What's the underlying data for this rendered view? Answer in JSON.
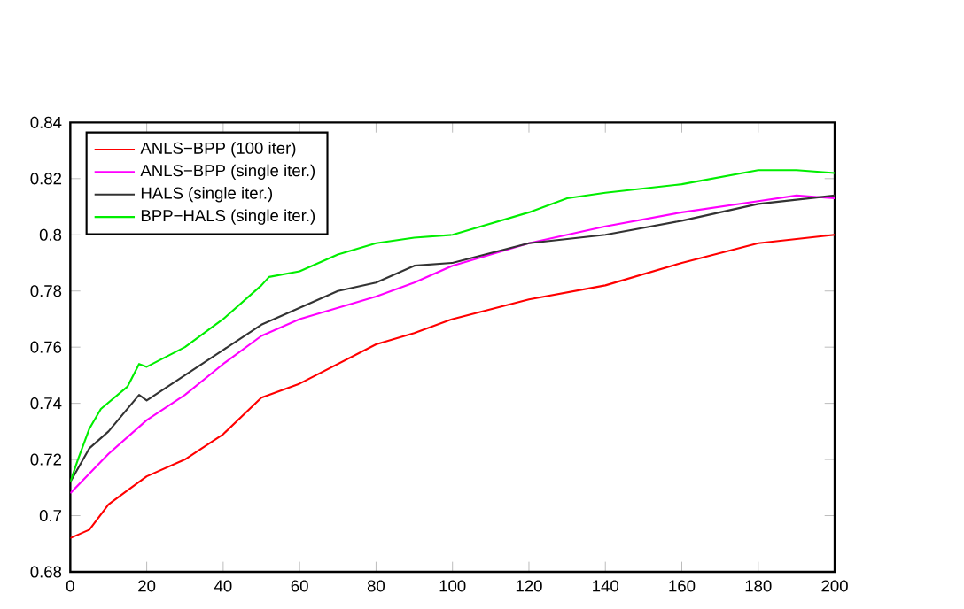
{
  "chart_data": {
    "type": "line",
    "xlim": [
      0,
      200
    ],
    "xticks": [
      0,
      20,
      40,
      60,
      80,
      100,
      120,
      140,
      160,
      180,
      200
    ],
    "ylim": [
      0.68,
      0.84
    ],
    "yticks": [
      0.68,
      0.7,
      0.72,
      0.74,
      0.76,
      0.78,
      0.8,
      0.82,
      0.84
    ],
    "legend": "top left",
    "grid": false,
    "marker": "none",
    "line_style": "solid",
    "series": [
      {
        "name": "ANLS−BPP (100 iter)",
        "color": "#ff0000",
        "x": [
          0,
          5,
          10,
          15,
          20,
          30,
          40,
          50,
          60,
          70,
          80,
          90,
          100,
          120,
          140,
          160,
          180,
          200
        ],
        "values": [
          0.692,
          0.695,
          0.704,
          0.709,
          0.714,
          0.72,
          0.729,
          0.742,
          0.747,
          0.754,
          0.761,
          0.765,
          0.77,
          0.777,
          0.782,
          0.79,
          0.797,
          0.8
        ]
      },
      {
        "name": "ANLS−BPP (single iter.)",
        "color": "#ff00ff",
        "x": [
          0,
          10,
          20,
          30,
          40,
          50,
          60,
          70,
          80,
          90,
          100,
          120,
          140,
          160,
          180,
          190,
          200
        ],
        "values": [
          0.708,
          0.722,
          0.734,
          0.743,
          0.754,
          0.764,
          0.77,
          0.774,
          0.778,
          0.783,
          0.789,
          0.797,
          0.803,
          0.808,
          0.812,
          0.814,
          0.813
        ]
      },
      {
        "name": "HALS (single iter.)",
        "color": "#333333",
        "x": [
          0,
          5,
          10,
          18,
          20,
          30,
          40,
          50,
          60,
          70,
          80,
          90,
          100,
          120,
          140,
          160,
          180,
          200
        ],
        "values": [
          0.712,
          0.724,
          0.73,
          0.743,
          0.741,
          0.75,
          0.759,
          0.768,
          0.774,
          0.78,
          0.783,
          0.789,
          0.79,
          0.797,
          0.8,
          0.805,
          0.811,
          0.814
        ]
      },
      {
        "name": "BPP−HALS (single iter.)",
        "color": "#00ee00",
        "x": [
          0,
          2,
          5,
          8,
          15,
          18,
          20,
          30,
          40,
          50,
          52,
          60,
          70,
          80,
          90,
          100,
          120,
          130,
          140,
          160,
          180,
          190,
          200
        ],
        "values": [
          0.712,
          0.72,
          0.731,
          0.738,
          0.746,
          0.754,
          0.753,
          0.76,
          0.77,
          0.782,
          0.785,
          0.787,
          0.793,
          0.797,
          0.799,
          0.8,
          0.808,
          0.813,
          0.815,
          0.818,
          0.823,
          0.823,
          0.822
        ]
      }
    ]
  }
}
